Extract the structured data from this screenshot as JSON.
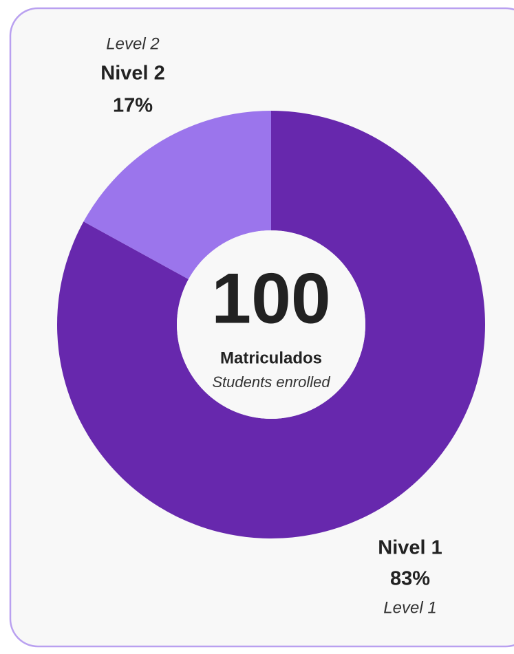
{
  "chart_data": {
    "type": "pie",
    "donut": true,
    "categories": [
      "Nivel 1",
      "Nivel 2"
    ],
    "subtitles": [
      "Level 1",
      "Level 2"
    ],
    "values": [
      83,
      17
    ],
    "value_labels": [
      "83%",
      "17%"
    ],
    "colors": [
      "#6728ad",
      "#9b75ec"
    ],
    "total": 100,
    "center_label": "Matriculados",
    "center_sublabel": "Students enrolled"
  }
}
